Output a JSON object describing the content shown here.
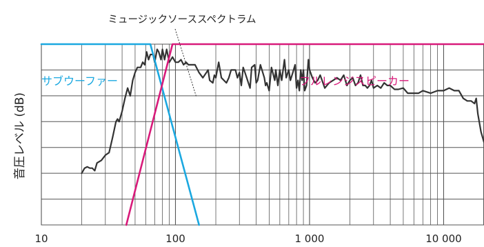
{
  "chart_data": {
    "type": "line",
    "title": "",
    "xlabel": "",
    "ylabel": "音圧レベル (dB)",
    "x_scale": "log",
    "xlim": [
      10,
      20000
    ],
    "x_tick_labels": [
      {
        "value": 10,
        "label": "10"
      },
      {
        "value": 100,
        "label": "100"
      },
      {
        "value": 1000,
        "label": "1 000"
      },
      {
        "value": 10000,
        "label": "10 000"
      }
    ],
    "grid": true,
    "annotation": "ミュージックソーススペクトラム",
    "series": [
      {
        "name": "サブウーファー",
        "color": "#1ba8e0",
        "label_color": "#1ba8e0",
        "points": [
          [
            10,
            7.0
          ],
          [
            65,
            7.0
          ],
          [
            150,
            0.0
          ]
        ]
      },
      {
        "name": "フルレンジスピーカー",
        "color": "#d81a7a",
        "label_color": "#d81a7a",
        "points": [
          [
            43,
            0.0
          ],
          [
            95,
            7.0
          ],
          [
            20000,
            7.0
          ]
        ]
      },
      {
        "name": "ミュージックソーススペクトラム",
        "color": "#333333",
        "points": [
          [
            20,
            2.0
          ],
          [
            21,
            2.2
          ],
          [
            22,
            2.25
          ],
          [
            23,
            2.2
          ],
          [
            24,
            2.2
          ],
          [
            25,
            2.1
          ],
          [
            26,
            2.4
          ],
          [
            28,
            2.5
          ],
          [
            30,
            2.7
          ],
          [
            32,
            2.8
          ],
          [
            34,
            3.4
          ],
          [
            36,
            4.0
          ],
          [
            37,
            4.1
          ],
          [
            38,
            4.0
          ],
          [
            40,
            4.4
          ],
          [
            42,
            4.9
          ],
          [
            44,
            5.3
          ],
          [
            46,
            5.0
          ],
          [
            48,
            5.6
          ],
          [
            50,
            5.9
          ],
          [
            52,
            6.1
          ],
          [
            55,
            6.1
          ],
          [
            57,
            6.3
          ],
          [
            59,
            6.2
          ],
          [
            61,
            6.7
          ],
          [
            63,
            6.4
          ],
          [
            65,
            6.6
          ],
          [
            68,
            6.6
          ],
          [
            70,
            6.3
          ],
          [
            73,
            6.8
          ],
          [
            75,
            6.7
          ],
          [
            78,
            6.4
          ],
          [
            80,
            6.8
          ],
          [
            83,
            6.4
          ],
          [
            86,
            6.8
          ],
          [
            90,
            6.3
          ],
          [
            95,
            6.5
          ],
          [
            100,
            6.3
          ],
          [
            105,
            6.3
          ],
          [
            110,
            6.4
          ],
          [
            115,
            6.2
          ],
          [
            120,
            6.3
          ],
          [
            125,
            6.2
          ],
          [
            130,
            6.2
          ],
          [
            140,
            6.2
          ],
          [
            150,
            5.9
          ],
          [
            160,
            5.7
          ],
          [
            170,
            5.9
          ],
          [
            175,
            6.0
          ],
          [
            180,
            5.6
          ],
          [
            190,
            5.5
          ],
          [
            195,
            5.8
          ],
          [
            200,
            5.7
          ],
          [
            210,
            6.3
          ],
          [
            220,
            5.7
          ],
          [
            240,
            5.5
          ],
          [
            250,
            5.7
          ],
          [
            260,
            6.0
          ],
          [
            280,
            6.0
          ],
          [
            290,
            5.7
          ],
          [
            300,
            5.9
          ],
          [
            310,
            5.4
          ],
          [
            320,
            6.1
          ],
          [
            330,
            5.9
          ],
          [
            340,
            5.7
          ],
          [
            360,
            5.3
          ],
          [
            370,
            6.1
          ],
          [
            390,
            6.2
          ],
          [
            400,
            5.5
          ],
          [
            410,
            5.6
          ],
          [
            430,
            6.2
          ],
          [
            460,
            5.7
          ],
          [
            470,
            5.4
          ],
          [
            480,
            5.5
          ],
          [
            500,
            5.2
          ],
          [
            520,
            6.1
          ],
          [
            550,
            5.6
          ],
          [
            560,
            6.0
          ],
          [
            580,
            5.4
          ],
          [
            600,
            6.0
          ],
          [
            620,
            5.6
          ],
          [
            650,
            6.4
          ],
          [
            670,
            5.7
          ],
          [
            700,
            6.0
          ],
          [
            720,
            5.6
          ],
          [
            750,
            5.9
          ],
          [
            780,
            6.2
          ],
          [
            800,
            5.3
          ],
          [
            820,
            5.6
          ],
          [
            840,
            5.2
          ],
          [
            860,
            6.0
          ],
          [
            880,
            5.6
          ],
          [
            900,
            6.0
          ],
          [
            920,
            5.2
          ],
          [
            950,
            5.4
          ],
          [
            980,
            6.4
          ],
          [
            1000,
            6.0
          ],
          [
            1050,
            5.7
          ],
          [
            1100,
            5.5
          ],
          [
            1150,
            5.6
          ],
          [
            1200,
            5.8
          ],
          [
            1300,
            5.3
          ],
          [
            1400,
            5.5
          ],
          [
            1500,
            5.6
          ],
          [
            1600,
            5.7
          ],
          [
            1700,
            5.6
          ],
          [
            1800,
            5.8
          ],
          [
            1900,
            5.4
          ],
          [
            2000,
            5.6
          ],
          [
            2100,
            5.7
          ],
          [
            2200,
            5.4
          ],
          [
            2300,
            5.5
          ],
          [
            2400,
            5.8
          ],
          [
            2500,
            5.4
          ],
          [
            2600,
            5.4
          ],
          [
            2700,
            5.3
          ],
          [
            2800,
            5.4
          ],
          [
            2900,
            5.6
          ],
          [
            3000,
            5.3
          ],
          [
            3200,
            5.4
          ],
          [
            3400,
            5.3
          ],
          [
            3600,
            5.5
          ],
          [
            3800,
            5.4
          ],
          [
            4000,
            5.4
          ],
          [
            4300,
            5.25
          ],
          [
            4600,
            5.25
          ],
          [
            5000,
            5.3
          ],
          [
            5400,
            5.1
          ],
          [
            5800,
            5.1
          ],
          [
            6500,
            5.1
          ],
          [
            7000,
            5.2
          ],
          [
            8000,
            5.1
          ],
          [
            9000,
            5.2
          ],
          [
            10000,
            5.2
          ],
          [
            11000,
            5.3
          ],
          [
            12000,
            5.2
          ],
          [
            13000,
            5.2
          ],
          [
            14000,
            4.9
          ],
          [
            15000,
            4.8
          ],
          [
            16000,
            4.8
          ],
          [
            17000,
            4.7
          ],
          [
            17500,
            4.9
          ],
          [
            18000,
            4.3
          ],
          [
            19000,
            3.6
          ],
          [
            20000,
            3.2
          ]
        ]
      }
    ],
    "legend": "inline labels on the chart"
  }
}
